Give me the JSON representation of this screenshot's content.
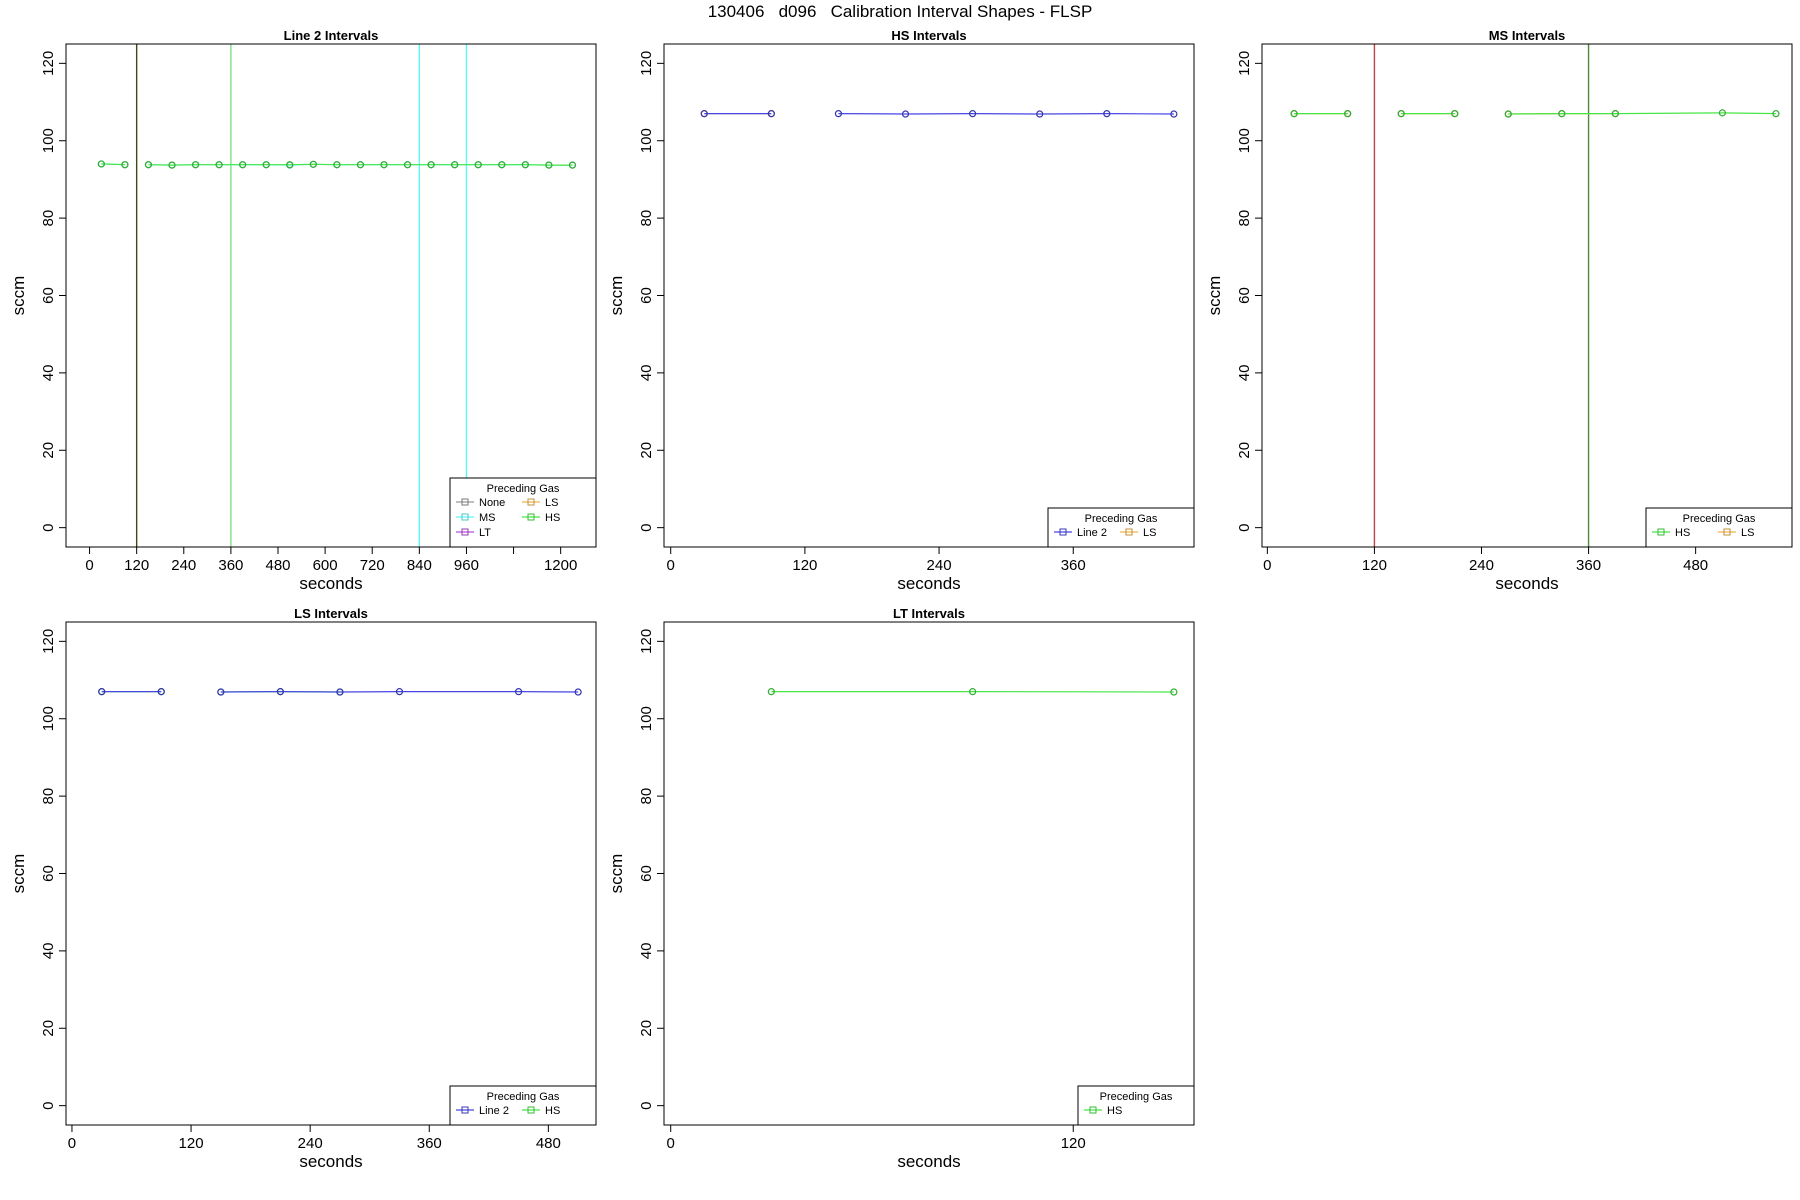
{
  "suptitle": "130406   d096   Calibration Interval Shapes - FLSP",
  "colors": {
    "None": "#999999",
    "MS": "#5ff5f5",
    "LT": "#b84ddb",
    "LS": "#f0b44c",
    "HS": "#45e645",
    "Line 2": "#4646e6"
  },
  "chart_data": [
    {
      "type": "line",
      "title": "Line 2 Intervals",
      "xlabel": "seconds",
      "ylabel": "sccm",
      "xlim": [
        -60,
        1290
      ],
      "ylim": [
        -5,
        125
      ],
      "xticks": [
        0,
        120,
        240,
        360,
        480,
        600,
        720,
        840,
        960,
        1080,
        1200
      ],
      "xtick_labels": [
        "0",
        "120",
        "240",
        "360",
        "480",
        "600",
        "720",
        "840",
        "960",
        "",
        "1200"
      ],
      "yticks": [
        0,
        20,
        40,
        60,
        80,
        100,
        120
      ],
      "vlines": [
        {
          "x": 120,
          "color": "#3a4a1a"
        },
        {
          "x": 360,
          "color": "#7fe08a"
        },
        {
          "x": 840,
          "color": "#5ff5f5"
        },
        {
          "x": 960,
          "color": "#5ff5f5"
        }
      ],
      "legend": {
        "title": "Preceding Gas",
        "columns": 2,
        "position": "bottom-right",
        "entries": [
          "None",
          "MS",
          "LT",
          "LS",
          "HS"
        ]
      },
      "series": [
        {
          "name": "MS",
          "segments": [
            {
              "x": [
                30,
                90
              ],
              "y": [
                94,
                93.8
              ]
            },
            {
              "x": [
                150,
                210,
                270,
                330,
                390,
                450,
                510,
                570,
                630,
                690,
                750,
                810,
                870,
                930,
                990,
                1050,
                1110,
                1170,
                1230
              ],
              "y": [
                93.8,
                93.7,
                93.8,
                93.8,
                93.8,
                93.8,
                93.7,
                93.9,
                93.8,
                93.8,
                93.8,
                93.8,
                93.8,
                93.8,
                93.8,
                93.8,
                93.8,
                93.7,
                93.7
              ]
            }
          ]
        },
        {
          "name": "HS",
          "segments": [
            {
              "x": [
                30,
                90
              ],
              "y": [
                94,
                93.8
              ]
            },
            {
              "x": [
                150,
                210,
                270,
                330,
                390,
                450,
                510,
                570,
                630,
                690,
                750,
                810,
                870,
                930,
                990,
                1050,
                1110,
                1170,
                1230
              ],
              "y": [
                93.8,
                93.7,
                93.8,
                93.8,
                93.8,
                93.8,
                93.8,
                93.9,
                93.8,
                93.8,
                93.8,
                93.8,
                93.8,
                93.8,
                93.8,
                93.8,
                93.8,
                93.7,
                93.7
              ]
            }
          ]
        }
      ]
    },
    {
      "type": "line",
      "title": "HS Intervals",
      "xlabel": "seconds",
      "ylabel": "sccm",
      "xlim": [
        -6,
        468
      ],
      "ylim": [
        -5,
        125
      ],
      "xticks": [
        0,
        120,
        240,
        360
      ],
      "xtick_labels": [
        "0",
        "120",
        "240",
        "360"
      ],
      "yticks": [
        0,
        20,
        40,
        60,
        80,
        100,
        120
      ],
      "vlines": [],
      "legend": {
        "title": "Preceding Gas",
        "columns": 2,
        "position": "bottom-right",
        "entries": [
          "Line 2",
          "LS"
        ]
      },
      "series": [
        {
          "name": "LS",
          "segments": [
            {
              "x": [
                30,
                90
              ],
              "y": [
                107,
                107
              ]
            }
          ]
        },
        {
          "name": "Line 2",
          "segments": [
            {
              "x": [
                30,
                90
              ],
              "y": [
                107,
                107
              ]
            },
            {
              "x": [
                150,
                210,
                270,
                330,
                390,
                450
              ],
              "y": [
                107,
                106.9,
                107,
                106.9,
                107,
                106.9
              ]
            }
          ]
        }
      ]
    },
    {
      "type": "line",
      "title": "MS Intervals",
      "xlabel": "seconds",
      "ylabel": "sccm",
      "xlim": [
        -6,
        588
      ],
      "ylim": [
        -5,
        125
      ],
      "xticks": [
        0,
        120,
        240,
        360,
        480
      ],
      "xtick_labels": [
        "0",
        "120",
        "240",
        "360",
        "480"
      ],
      "yticks": [
        0,
        20,
        40,
        60,
        80,
        100,
        120
      ],
      "vlines": [
        {
          "x": 120,
          "color": "#b84848"
        },
        {
          "x": 360,
          "color": "#4e8a3a"
        }
      ],
      "legend": {
        "title": "Preceding Gas",
        "columns": 2,
        "position": "bottom-right",
        "entries": [
          "HS",
          "LS"
        ]
      },
      "series": [
        {
          "name": "LS",
          "segments": [
            {
              "x": [
                30,
                90
              ],
              "y": [
                107,
                107
              ]
            },
            {
              "x": [
                150,
                210
              ],
              "y": [
                107,
                107
              ]
            },
            {
              "x": [
                270,
                330,
                390
              ],
              "y": [
                106.9,
                107,
                107
              ]
            }
          ]
        },
        {
          "name": "HS",
          "segments": [
            {
              "x": [
                30,
                90
              ],
              "y": [
                107,
                107
              ]
            },
            {
              "x": [
                150,
                210
              ],
              "y": [
                107,
                107
              ]
            },
            {
              "x": [
                270,
                330,
                390,
                510,
                570
              ],
              "y": [
                106.9,
                107,
                107,
                107.2,
                107
              ]
            }
          ]
        }
      ]
    },
    {
      "type": "line",
      "title": "LS Intervals",
      "xlabel": "seconds",
      "ylabel": "sccm",
      "xlim": [
        -6,
        528
      ],
      "ylim": [
        -5,
        125
      ],
      "xticks": [
        0,
        120,
        240,
        360,
        480
      ],
      "xtick_labels": [
        "0",
        "120",
        "240",
        "360",
        "480"
      ],
      "yticks": [
        0,
        20,
        40,
        60,
        80,
        100,
        120
      ],
      "vlines": [],
      "legend": {
        "title": "Preceding Gas",
        "columns": 2,
        "position": "bottom-right",
        "entries": [
          "Line 2",
          "HS"
        ]
      },
      "series": [
        {
          "name": "HS",
          "segments": [
            {
              "x": [
                30,
                90
              ],
              "y": [
                107,
                107
              ]
            },
            {
              "x": [
                150,
                210,
                270
              ],
              "y": [
                106.9,
                107,
                106.9
              ]
            }
          ]
        },
        {
          "name": "Line 2",
          "segments": [
            {
              "x": [
                30,
                90
              ],
              "y": [
                107,
                107
              ]
            },
            {
              "x": [
                150,
                210,
                270,
                330,
                450,
                510
              ],
              "y": [
                106.9,
                107,
                106.9,
                107,
                107,
                106.9
              ]
            }
          ]
        }
      ]
    },
    {
      "type": "line",
      "title": "LT Intervals",
      "xlabel": "seconds",
      "ylabel": "sccm",
      "xlim": [
        -2,
        156
      ],
      "ylim": [
        -5,
        125
      ],
      "xticks": [
        0,
        120
      ],
      "xtick_labels": [
        "0",
        "120"
      ],
      "yticks": [
        0,
        20,
        40,
        60,
        80,
        100,
        120
      ],
      "vlines": [],
      "legend": {
        "title": "Preceding Gas",
        "columns": 1,
        "position": "bottom-right",
        "entries": [
          "HS"
        ]
      },
      "series": [
        {
          "name": "HS",
          "segments": [
            {
              "x": [
                30,
                90,
                150
              ],
              "y": [
                107,
                107,
                106.9
              ]
            }
          ]
        }
      ]
    }
  ]
}
